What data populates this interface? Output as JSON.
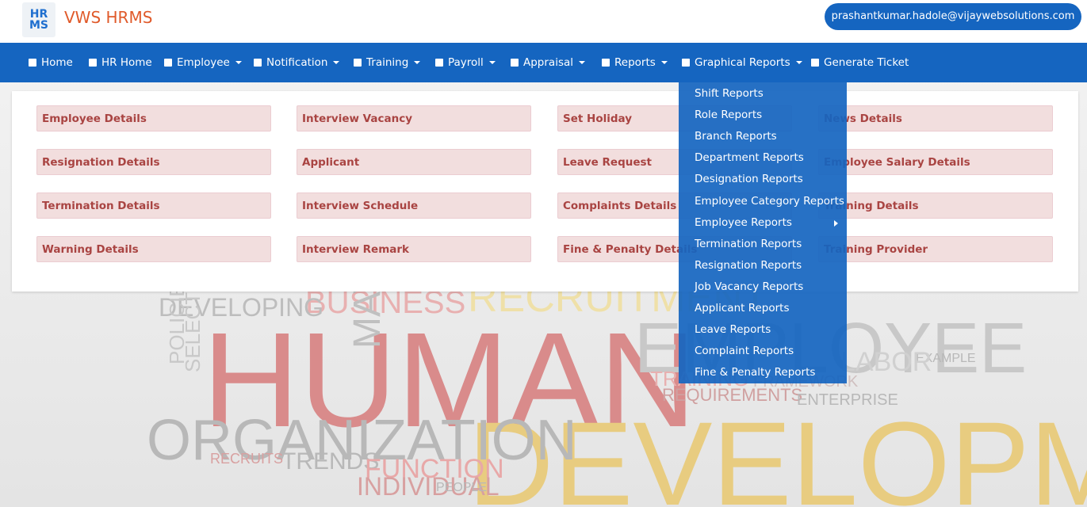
{
  "header": {
    "logo_mark": "HR MS",
    "brand": "VWS HRMS",
    "user_email": "prashantkumar.hadole@vijaywebsolutions.com"
  },
  "nav": {
    "items": [
      {
        "label": "Home",
        "caret": false
      },
      {
        "label": "HR Home",
        "caret": false
      },
      {
        "label": "Employee",
        "caret": true
      },
      {
        "label": "Notification",
        "caret": true
      },
      {
        "label": "Training",
        "caret": true
      },
      {
        "label": "Payroll",
        "caret": true
      },
      {
        "label": "Appraisal",
        "caret": true
      },
      {
        "label": "Reports",
        "caret": true
      },
      {
        "label": "Graphical Reports",
        "caret": true
      },
      {
        "label": "Generate Ticket",
        "caret": false
      }
    ]
  },
  "panel": {
    "columns": [
      [
        "Employee Details",
        "Resignation Details",
        "Termination Details",
        "Warning Details"
      ],
      [
        "Interview Vacancy",
        "Applicant",
        "Interview Schedule",
        "Interview Remark"
      ],
      [
        "Set Holiday",
        "Leave Request",
        "Complaints Details",
        "Fine & Penalty Details"
      ],
      [
        "News Details",
        "Employee Salary Details",
        "Training Details",
        "Training Provider"
      ]
    ]
  },
  "dropdown": {
    "items": [
      {
        "label": "Shift Reports"
      },
      {
        "label": "Role Reports"
      },
      {
        "label": "Branch Reports"
      },
      {
        "label": "Department Reports"
      },
      {
        "label": "Designation Reports"
      },
      {
        "label": "Employee Category Reports"
      },
      {
        "label": "Employee Reports",
        "submenu": true
      },
      {
        "label": "Termination Reports"
      },
      {
        "label": "Resignation Reports"
      },
      {
        "label": "Job Vacancy Reports"
      },
      {
        "label": "Applicant Reports"
      },
      {
        "label": "Leave Reports"
      },
      {
        "label": "Complaint Reports"
      },
      {
        "label": "Fine & Penalty Reports"
      }
    ]
  },
  "background": {
    "words": [
      "HUMAN",
      "DEVELOPMENT",
      "ORGANIZATION",
      "EMPLOYEE",
      "RECRUITMENT",
      "BUSINESS",
      "DEVELOPING",
      "MAY",
      "POLICIES",
      "SELECTION",
      "TRENDS",
      "FUNCTION",
      "INDIVIDUAL",
      "REQUIREMENTS",
      "ENTERPRISE",
      "RECRUITS",
      "PEOPLE",
      "EXAMPLE",
      "FRAMEWORK",
      "TRAINING",
      "LABOR"
    ]
  }
}
